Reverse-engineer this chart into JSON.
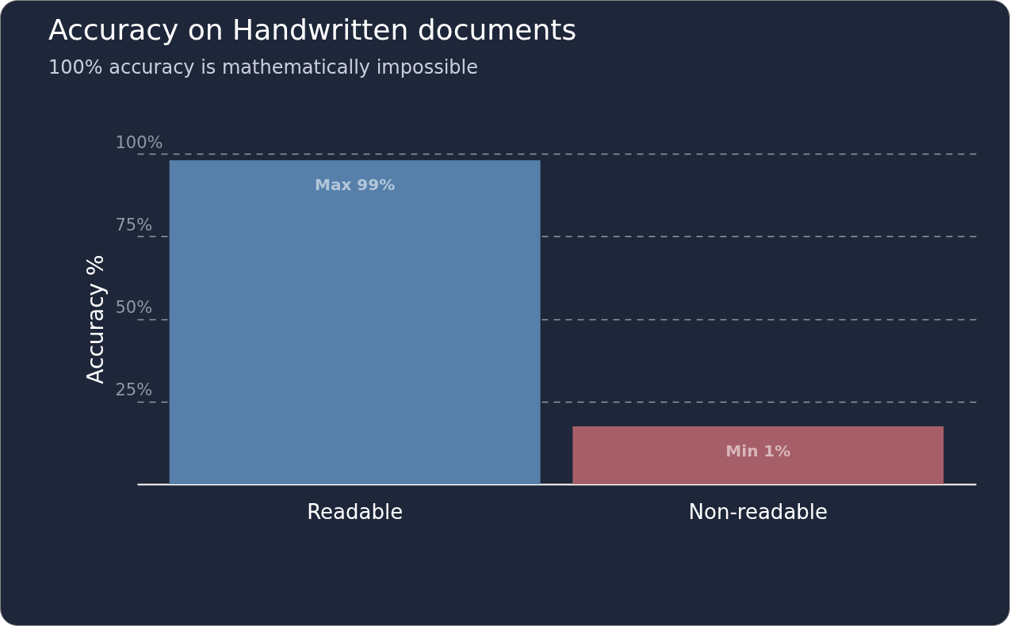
{
  "chart_data": {
    "type": "bar",
    "title": "Accuracy on Handwritten documents",
    "subtitle": "100% accuracy is mathematically impossible",
    "ylabel": "Accuracy %",
    "categories": [
      "Readable",
      "Non-readable"
    ],
    "values": [
      98,
      17.5
    ],
    "colors": [
      "#5680aa",
      "#a65f68"
    ],
    "ylim": [
      0,
      100
    ],
    "yticks": [
      {
        "value": 25,
        "label": "25%"
      },
      {
        "value": 50,
        "label": "50%"
      },
      {
        "value": 75,
        "label": "75%"
      },
      {
        "value": 100,
        "label": "100%"
      }
    ],
    "grid": "y",
    "annotations": [
      "Max 99%",
      "Min 1%"
    ]
  }
}
